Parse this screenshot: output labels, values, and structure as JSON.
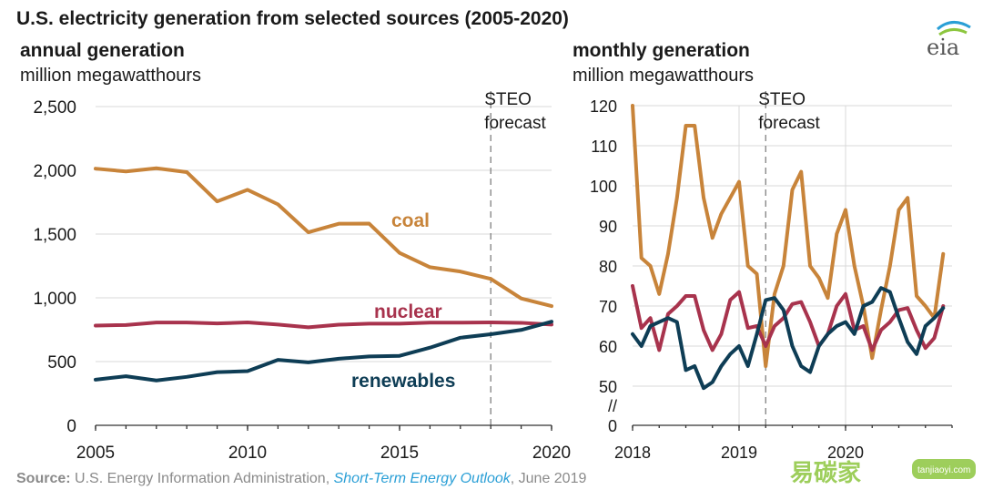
{
  "title": "U.S. electricity generation from selected sources (2005-2020)",
  "logo_text": "eia",
  "source": {
    "prefix": "Source:",
    "agency": " U.S. Energy Information Administration, ",
    "publication": "Short-Term Energy Outlook",
    "date": ", June 2019"
  },
  "watermark": {
    "text": "易碳家",
    "url": "tanjiaoyi.com"
  },
  "colors": {
    "coal": "#c8843a",
    "nuclear": "#a8334d",
    "renewables": "#0e3d55"
  },
  "chart_data": [
    {
      "type": "line",
      "subtitle": "annual generation",
      "ylabel": "million megawatthours",
      "x": [
        2005,
        2006,
        2007,
        2008,
        2009,
        2010,
        2011,
        2012,
        2013,
        2014,
        2015,
        2016,
        2017,
        2018,
        2019,
        2020
      ],
      "xlim": [
        2005,
        2020
      ],
      "ylim": [
        0,
        2500
      ],
      "xticks": [
        "2005",
        "2010",
        "2015",
        "2020"
      ],
      "yticks": [
        "0",
        "500",
        "1,000",
        "1,500",
        "2,000",
        "2,500"
      ],
      "forecast_x": 2018,
      "forecast_label": [
        "STEO",
        "forecast"
      ],
      "grid": true,
      "series": [
        {
          "name": "coal",
          "values": [
            2013,
            1991,
            2016,
            1986,
            1756,
            1847,
            1733,
            1514,
            1581,
            1582,
            1352,
            1240,
            1206,
            1149,
            995,
            935
          ]
        },
        {
          "name": "nuclear",
          "values": [
            782,
            787,
            806,
            806,
            799,
            807,
            790,
            769,
            789,
            797,
            797,
            805,
            805,
            807,
            804,
            790
          ]
        },
        {
          "name": "renewables",
          "values": [
            358,
            385,
            352,
            380,
            417,
            425,
            513,
            494,
            522,
            540,
            545,
            609,
            687,
            714,
            748,
            813
          ]
        }
      ]
    },
    {
      "type": "line",
      "subtitle": "monthly generation",
      "ylabel": "million megawatthours",
      "xlim": [
        2018,
        2021
      ],
      "ylim": [
        50,
        120
      ],
      "xticks": [
        "2018",
        "2019",
        "2020"
      ],
      "yticks": [
        "0",
        "50",
        "60",
        "70",
        "80",
        "90",
        "100",
        "110",
        "120"
      ],
      "axis_break": "//",
      "forecast_x": 2019.25,
      "forecast_label": [
        "STEO",
        "forecast"
      ],
      "grid": true,
      "series": [
        {
          "name": "coal",
          "points": [
            [
              2018.0,
              120
            ],
            [
              2018.083,
              82
            ],
            [
              2018.167,
              80
            ],
            [
              2018.25,
              73
            ],
            [
              2018.333,
              83
            ],
            [
              2018.417,
              97
            ],
            [
              2018.5,
              115
            ],
            [
              2018.583,
              115
            ],
            [
              2018.667,
              97
            ],
            [
              2018.75,
              87
            ],
            [
              2018.833,
              93
            ],
            [
              2018.917,
              97
            ],
            [
              2019.0,
              101
            ],
            [
              2019.083,
              80
            ],
            [
              2019.167,
              78
            ],
            [
              2019.25,
              55
            ],
            [
              2019.333,
              73
            ],
            [
              2019.417,
              80
            ],
            [
              2019.5,
              99
            ],
            [
              2019.583,
              103.5
            ],
            [
              2019.667,
              80
            ],
            [
              2019.75,
              77
            ],
            [
              2019.833,
              72
            ],
            [
              2019.917,
              88
            ],
            [
              2020.0,
              94
            ],
            [
              2020.083,
              80
            ],
            [
              2020.167,
              70
            ],
            [
              2020.25,
              57
            ],
            [
              2020.333,
              69
            ],
            [
              2020.417,
              80
            ],
            [
              2020.5,
              94
            ],
            [
              2020.583,
              97
            ],
            [
              2020.667,
              72.5
            ],
            [
              2020.75,
              70
            ],
            [
              2020.833,
              67
            ],
            [
              2020.917,
              83
            ]
          ]
        },
        {
          "name": "nuclear",
          "points": [
            [
              2018.0,
              75
            ],
            [
              2018.083,
              64.5
            ],
            [
              2018.167,
              67
            ],
            [
              2018.25,
              59
            ],
            [
              2018.333,
              68
            ],
            [
              2018.417,
              70
            ],
            [
              2018.5,
              72.5
            ],
            [
              2018.583,
              72.5
            ],
            [
              2018.667,
              64
            ],
            [
              2018.75,
              59
            ],
            [
              2018.833,
              63
            ],
            [
              2018.917,
              71.5
            ],
            [
              2019.0,
              73.5
            ],
            [
              2019.083,
              64.5
            ],
            [
              2019.167,
              65
            ],
            [
              2019.25,
              60
            ],
            [
              2019.333,
              65
            ],
            [
              2019.417,
              67
            ],
            [
              2019.5,
              70.5
            ],
            [
              2019.583,
              71
            ],
            [
              2019.667,
              66
            ],
            [
              2019.75,
              60
            ],
            [
              2019.833,
              63
            ],
            [
              2019.917,
              70
            ],
            [
              2020.0,
              73
            ],
            [
              2020.083,
              64
            ],
            [
              2020.167,
              65
            ],
            [
              2020.25,
              59
            ],
            [
              2020.333,
              64
            ],
            [
              2020.417,
              66
            ],
            [
              2020.5,
              69
            ],
            [
              2020.583,
              69.5
            ],
            [
              2020.667,
              64
            ],
            [
              2020.75,
              59.5
            ],
            [
              2020.833,
              62
            ],
            [
              2020.917,
              70
            ]
          ]
        },
        {
          "name": "renewables",
          "points": [
            [
              2018.0,
              63
            ],
            [
              2018.083,
              60
            ],
            [
              2018.167,
              65
            ],
            [
              2018.25,
              66
            ],
            [
              2018.333,
              67
            ],
            [
              2018.417,
              66
            ],
            [
              2018.5,
              54
            ],
            [
              2018.583,
              55
            ],
            [
              2018.667,
              49.5
            ],
            [
              2018.75,
              51
            ],
            [
              2018.833,
              55
            ],
            [
              2018.917,
              58
            ],
            [
              2019.0,
              60
            ],
            [
              2019.083,
              55
            ],
            [
              2019.167,
              63
            ],
            [
              2019.25,
              71.5
            ],
            [
              2019.333,
              72
            ],
            [
              2019.417,
              69
            ],
            [
              2019.5,
              60
            ],
            [
              2019.583,
              55
            ],
            [
              2019.667,
              53.5
            ],
            [
              2019.75,
              60
            ],
            [
              2019.833,
              63
            ],
            [
              2019.917,
              65
            ],
            [
              2020.0,
              66
            ],
            [
              2020.083,
              63
            ],
            [
              2020.167,
              70
            ],
            [
              2020.25,
              71
            ],
            [
              2020.333,
              74.5
            ],
            [
              2020.417,
              73.5
            ],
            [
              2020.5,
              67
            ],
            [
              2020.583,
              61
            ],
            [
              2020.667,
              58
            ],
            [
              2020.75,
              65
            ],
            [
              2020.833,
              67
            ],
            [
              2020.917,
              69.5
            ]
          ]
        }
      ]
    }
  ]
}
